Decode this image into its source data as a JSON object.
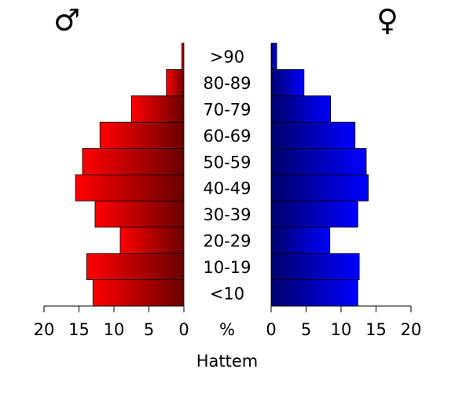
{
  "chart_data": {
    "type": "pyramid",
    "title": "Hattem",
    "x_label": "%",
    "categories": [
      "<10",
      "10-19",
      "20-29",
      "30-39",
      "40-49",
      "50-59",
      "60-69",
      "70-79",
      "80-89",
      ">90"
    ],
    "series": [
      {
        "name": "♂",
        "color": "#ff0000",
        "values": [
          13.0,
          13.9,
          9.1,
          12.7,
          15.5,
          14.5,
          12.0,
          7.5,
          2.5,
          0.3
        ]
      },
      {
        "name": "♀",
        "color": "#0000ff",
        "values": [
          12.4,
          12.6,
          8.4,
          12.4,
          13.9,
          13.6,
          12.0,
          8.5,
          4.7,
          0.8
        ]
      }
    ],
    "xlim": [
      0,
      20
    ],
    "xticks": [
      0,
      5,
      10,
      15,
      20
    ]
  }
}
